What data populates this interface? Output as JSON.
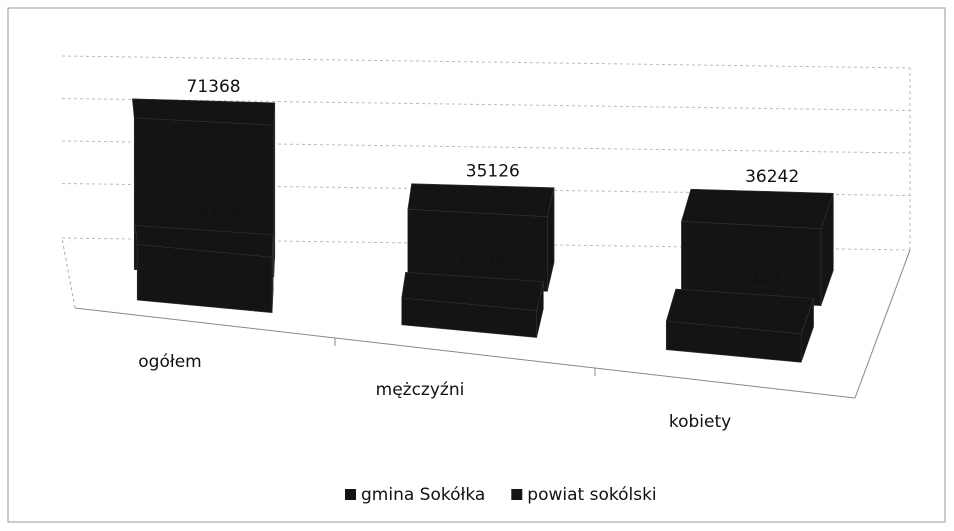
{
  "chart_data": {
    "type": "bar3d",
    "categories": [
      "ogółem",
      "mężczyźni",
      "kobiety"
    ],
    "series": [
      {
        "name": "gmina Sokółka",
        "color": "#141414",
        "values": [
          26148,
          12706,
          13442
        ]
      },
      {
        "name": "powiat sokólski",
        "color": "#141414",
        "values": [
          71368,
          35126,
          36242
        ]
      }
    ],
    "ylim": [
      0,
      80000
    ],
    "grid": true,
    "legend": "bottom"
  }
}
